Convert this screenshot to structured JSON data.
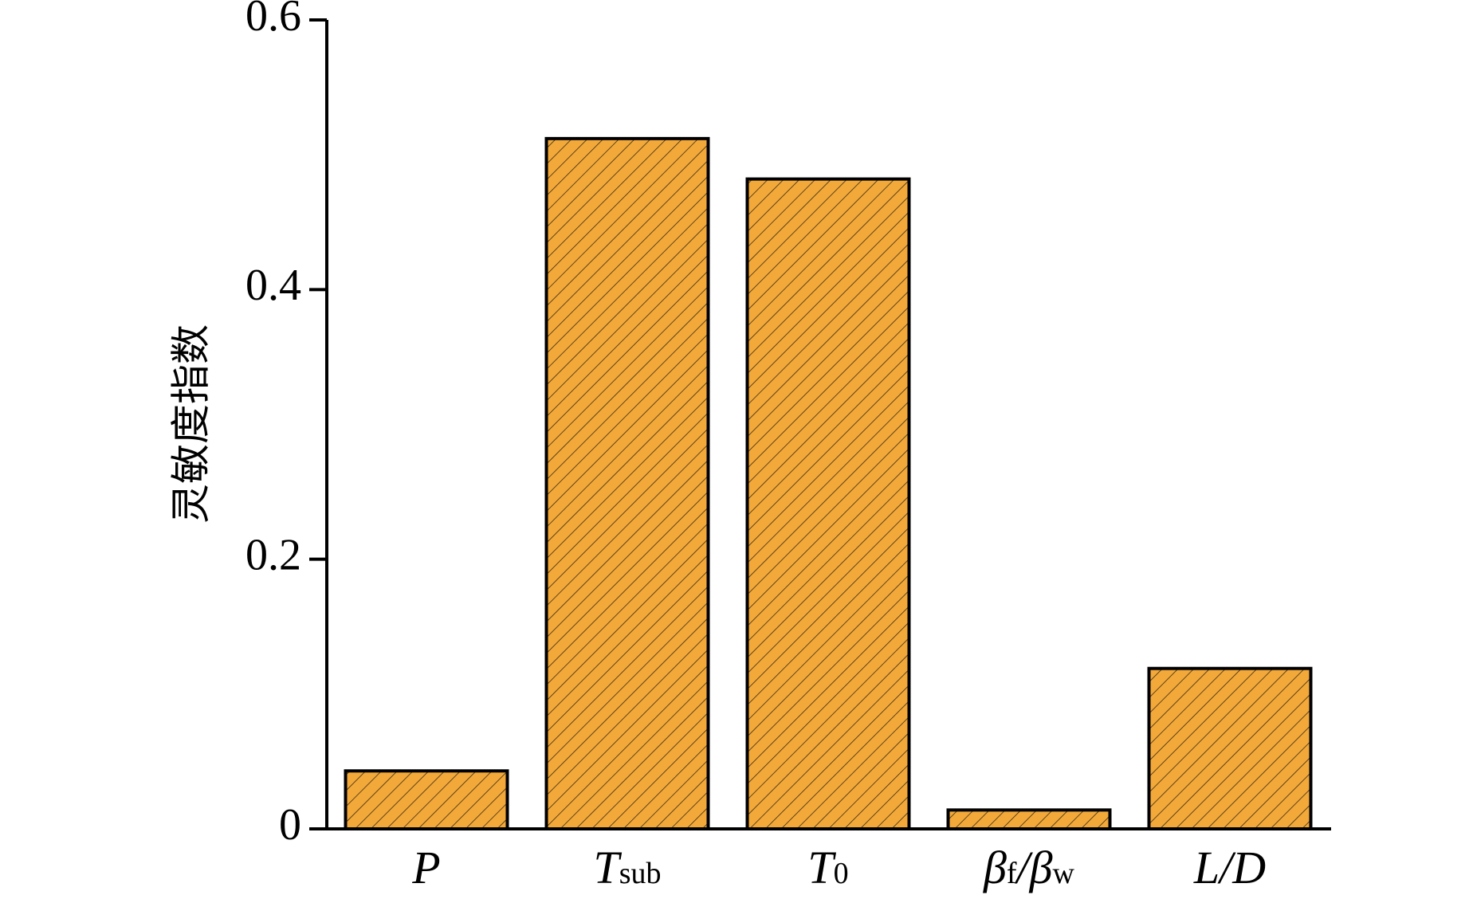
{
  "chart_data": {
    "type": "bar",
    "categories": [
      {
        "main": "P",
        "sub": "",
        "text": "P"
      },
      {
        "main": "T",
        "sub": "sub",
        "text": "Tsub"
      },
      {
        "main": "T",
        "sub": "0",
        "text": "T0"
      },
      {
        "main": "βf/βw",
        "sub": "",
        "text": "βf/βw"
      },
      {
        "main": "L/D",
        "sub": "",
        "text": "L/D"
      }
    ],
    "values": [
      0.043,
      0.512,
      0.482,
      0.014,
      0.119
    ],
    "ylabel": "灵敏度指数",
    "xlabel": "",
    "title": "",
    "ylim": [
      0,
      0.6
    ],
    "yticks": [
      "0",
      "0.2",
      "0.4",
      "0.6"
    ],
    "grid": false,
    "bar_fill": "#f3a93a",
    "bar_hatch": "diagonal-lines",
    "bar_stroke": "#000000"
  }
}
